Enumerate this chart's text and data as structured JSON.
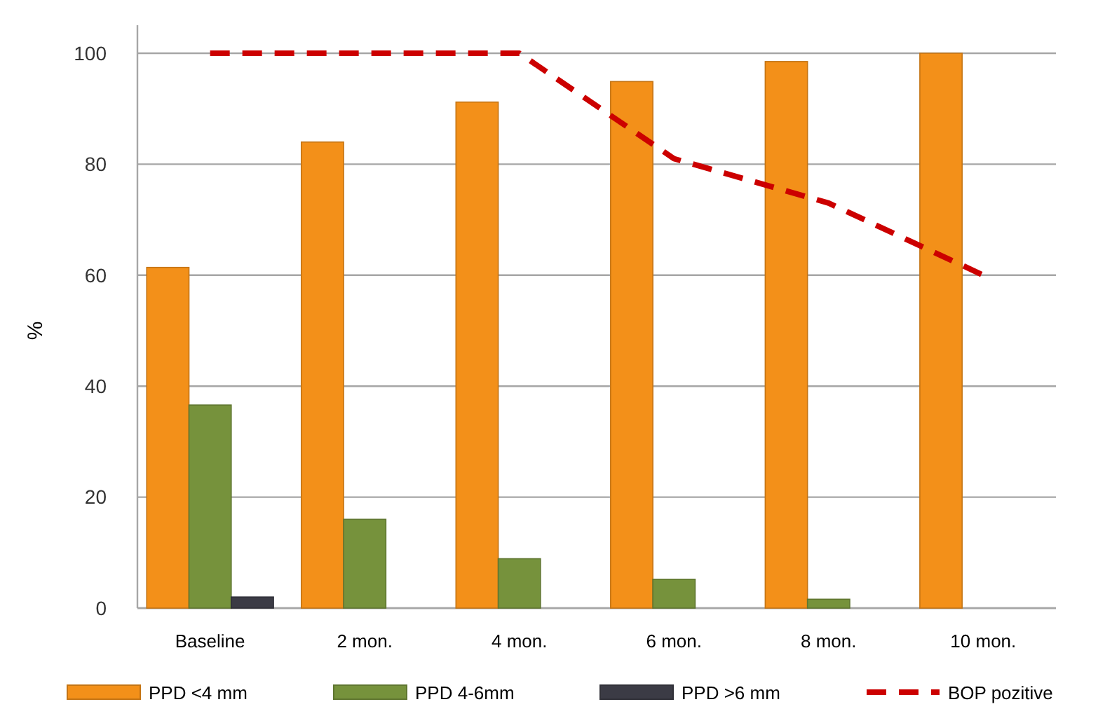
{
  "chart_data": {
    "type": "bar",
    "ylabel": "%",
    "categories": [
      "Baseline",
      "2 mon.",
      "4 mon.",
      "6 mon.",
      "8 mon.",
      "10 mon."
    ],
    "series": [
      {
        "name": "PPD <4 mm",
        "color": "#f39019",
        "values": [
          61.4,
          84,
          91.2,
          94.9,
          98.5,
          100
        ]
      },
      {
        "name": "PPD 4-6mm",
        "color": "#76923c",
        "values": [
          36.6,
          16,
          8.9,
          5.2,
          1.6,
          null
        ]
      },
      {
        "name": "PPD >6 mm",
        "color": "#3b3b45",
        "values": [
          2,
          null,
          null,
          null,
          null,
          null
        ]
      },
      {
        "name": "BOP pozitive",
        "type": "line",
        "color": "#cc0000",
        "line_style": "dashed",
        "values": [
          100,
          100,
          100,
          81,
          73,
          60
        ]
      }
    ],
    "ylim": [
      0,
      100
    ],
    "yticks": [
      0,
      20,
      40,
      60,
      80,
      100
    ],
    "grid": "y",
    "legend": "bottom"
  }
}
